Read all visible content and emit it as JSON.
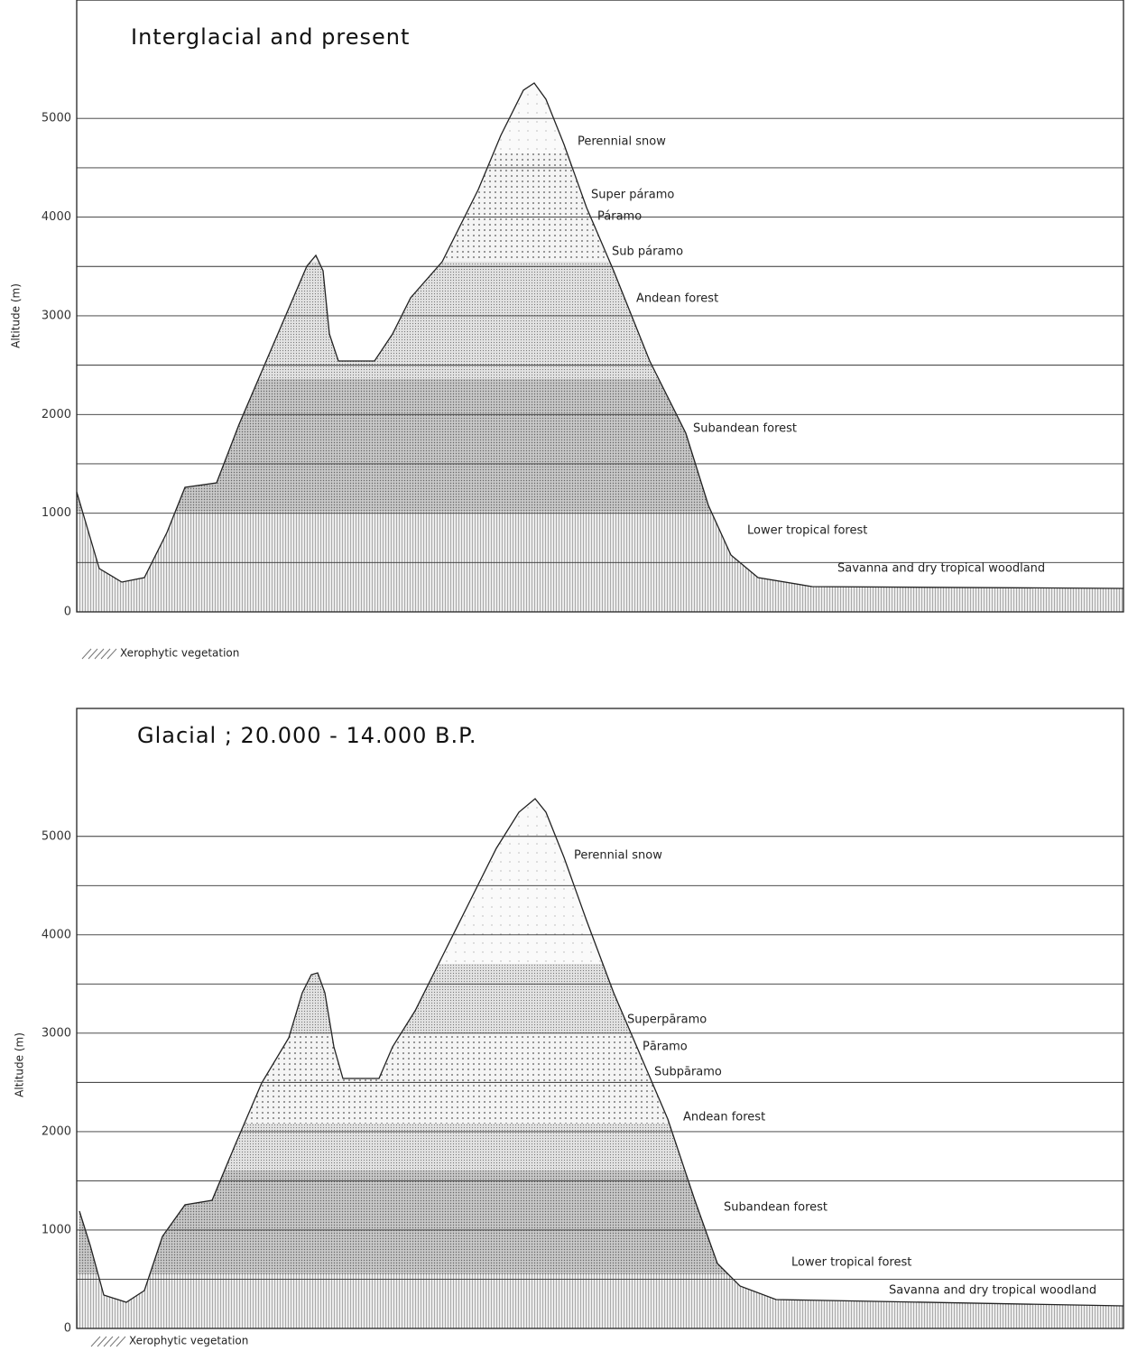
{
  "chart_data": [
    {
      "type": "profile",
      "title": "Interglacial and present",
      "ylabel": "Altitude (m)",
      "ylim": [
        0,
        6200
      ],
      "yticks": [
        0,
        1000,
        2000,
        3000,
        4000,
        5000
      ],
      "annotations": [
        "Perennial snow",
        "Super páramo",
        "Páramo",
        "Sub páramo",
        "Andean forest",
        "Subandean forest",
        "Lower tropical forest",
        "Savanna and dry tropical woodland"
      ],
      "legend": "Xerophytic vegetation"
    },
    {
      "type": "profile",
      "title": "Glacial ; 20.000 - 14.000 B.P.",
      "ylabel": "Altitude (m)",
      "ylim": [
        0,
        6300
      ],
      "yticks": [
        0,
        1000,
        2000,
        3000,
        4000,
        5000
      ],
      "annotations": [
        "Perennial snow",
        "Superpāramo",
        "Pāramo",
        "Subpāramo",
        "Andean forest",
        "Subandean forest",
        "Lower tropical forest",
        "Savanna and dry tropical woodland"
      ],
      "legend": "Xerophytic vegetation"
    }
  ]
}
